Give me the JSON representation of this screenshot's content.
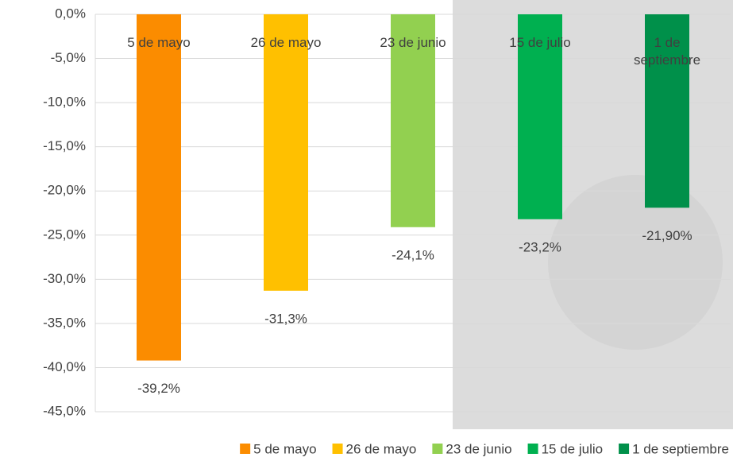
{
  "chart_data": {
    "type": "bar",
    "categories": [
      "5 de mayo",
      "26 de mayo",
      "23 de junio",
      "15 de julio",
      "1 de septiembre"
    ],
    "values": [
      -39.2,
      -31.3,
      -24.1,
      -23.2,
      -21.9
    ],
    "value_labels": [
      "-39,2%",
      "-31,3%",
      "-24,1%",
      "-23,2%",
      "-21,90%"
    ],
    "colors": [
      "#fb8c00",
      "#ffc000",
      "#92d050",
      "#00b050",
      "#00904a"
    ],
    "ylim": [
      -45,
      0
    ],
    "yticks": [
      {
        "value": 0,
        "label": "0,0%"
      },
      {
        "value": -5,
        "label": "-5,0%"
      },
      {
        "value": -10,
        "label": "-10,0%"
      },
      {
        "value": -15,
        "label": "-15,0%"
      },
      {
        "value": -20,
        "label": "-20,0%"
      },
      {
        "value": -25,
        "label": "-25,0%"
      },
      {
        "value": -30,
        "label": "-30,0%"
      },
      {
        "value": -35,
        "label": "-35,0%"
      },
      {
        "value": -40,
        "label": "-40,0%"
      },
      {
        "value": -45,
        "label": "-45,0%"
      }
    ],
    "grid": true,
    "legend": "bottom"
  }
}
